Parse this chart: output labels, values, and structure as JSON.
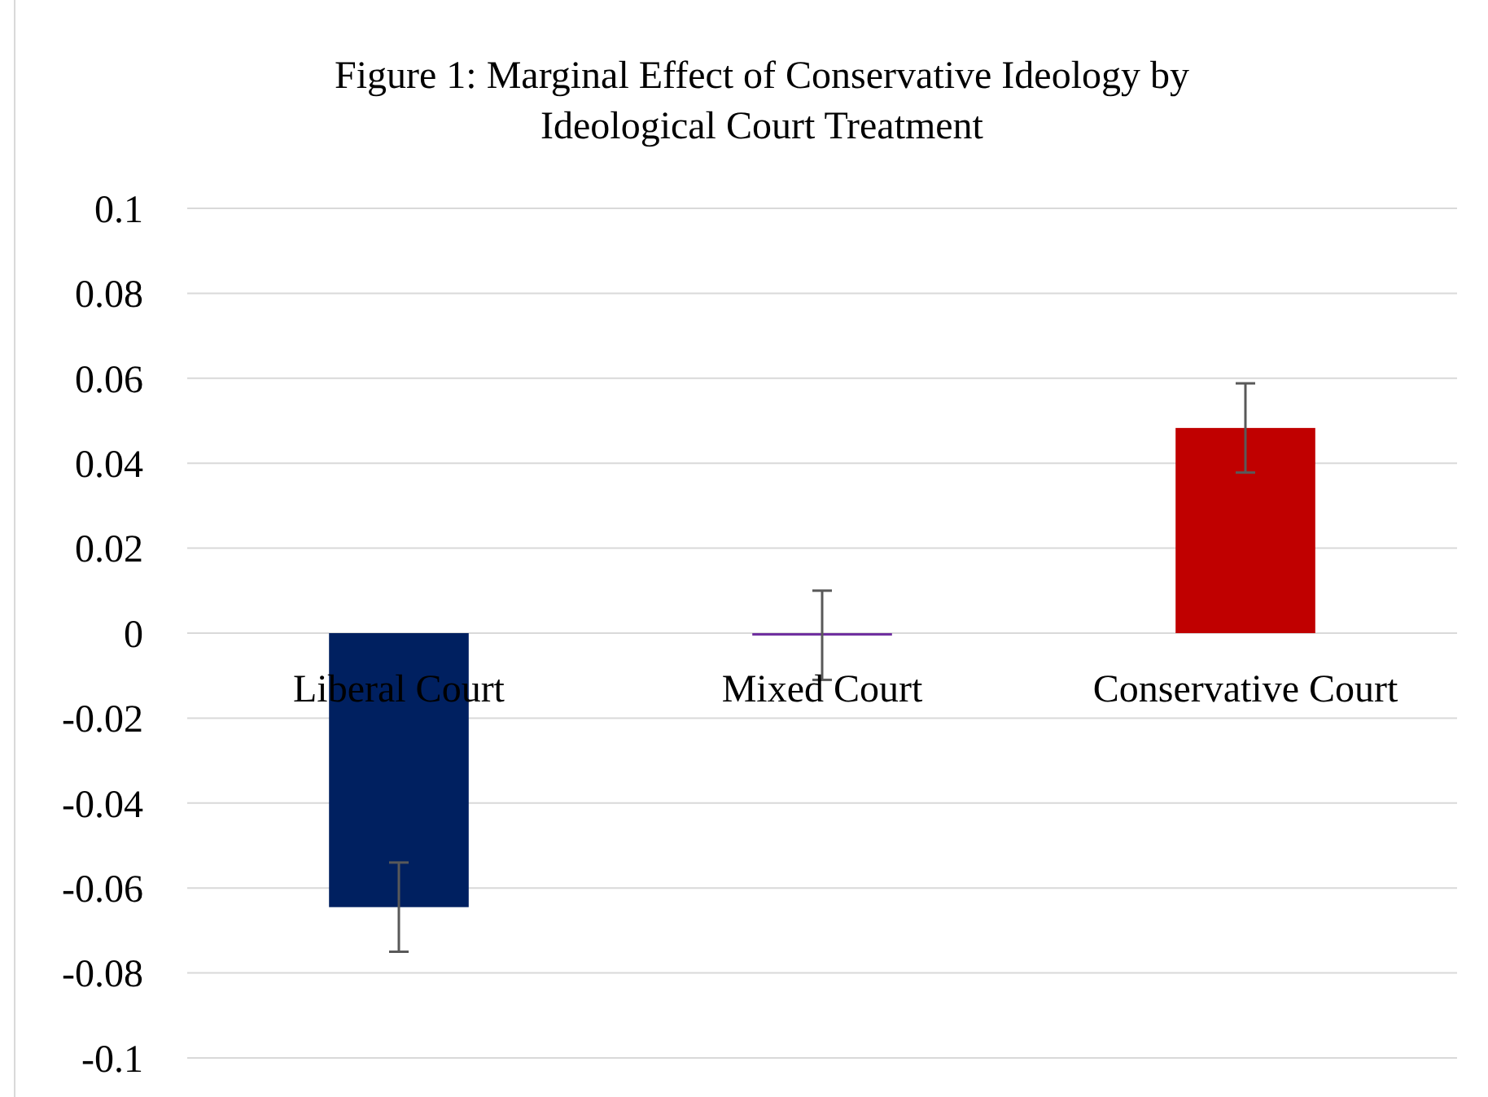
{
  "chart_data": {
    "type": "bar",
    "title": "Figure 1: Marginal Effect of Conservative Ideology by Ideological Court Treatment",
    "categories": [
      "Liberal Court",
      "Mixed Court",
      "Conservative Court"
    ],
    "values": [
      -0.0645,
      -0.0005,
      0.0483
    ],
    "colors": [
      "#002060",
      "#7030a0",
      "#c00000"
    ],
    "errors": [
      0.0105,
      0.0105,
      0.0105
    ],
    "ylim": [
      -0.1,
      0.1
    ],
    "yticks": [
      -0.1,
      -0.08,
      -0.06,
      -0.04,
      -0.02,
      0,
      0.02,
      0.04,
      0.06,
      0.08,
      0.1
    ],
    "grid": true
  }
}
